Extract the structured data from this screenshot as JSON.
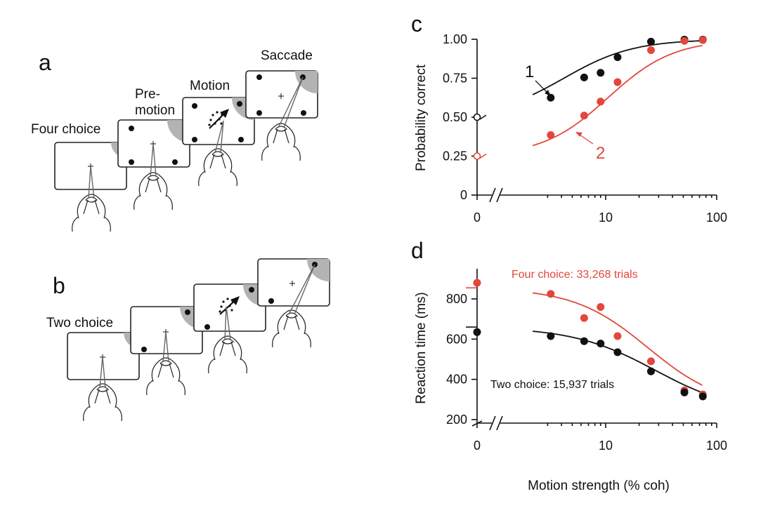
{
  "panels": {
    "a": {
      "letter": "a",
      "labels": [
        "Four choice",
        "Pre-",
        "motion",
        "Motion",
        "Saccade"
      ]
    },
    "b": {
      "letter": "b",
      "labels": [
        "Two choice"
      ]
    },
    "c": {
      "letter": "c"
    },
    "d": {
      "letter": "d"
    }
  },
  "chart_data": [
    {
      "type": "scatter",
      "panel": "c",
      "ylabel": "Probability correct",
      "x_scale": "log",
      "x_ticks": [
        "0",
        "10",
        "100"
      ],
      "y_ticks": [
        "0",
        "0.25",
        "0.50",
        "0.75",
        "1.00"
      ],
      "ylim": [
        0,
        1
      ],
      "series": [
        {
          "label": "1",
          "color": "#111111",
          "x": [
            0,
            3.2,
            6.4,
            9.0,
            12.8,
            25.6,
            51.2,
            75
          ],
          "y": [
            0.5,
            0.625,
            0.755,
            0.785,
            0.885,
            0.985,
            0.998,
            0.998
          ],
          "fit": "logistic"
        },
        {
          "label": "2",
          "color": "#e2473b",
          "x": [
            0,
            3.2,
            6.4,
            9.0,
            12.8,
            25.6,
            51.2,
            75
          ],
          "y": [
            0.25,
            0.385,
            0.51,
            0.6,
            0.725,
            0.93,
            0.99,
            0.995
          ],
          "fit": "logistic"
        }
      ]
    },
    {
      "type": "scatter",
      "panel": "d",
      "xlabel": "Motion strength (% coh)",
      "ylabel": "Reaction time (ms)",
      "x_scale": "log",
      "x_ticks": [
        "0",
        "10",
        "100"
      ],
      "y_ticks": [
        "200",
        "400",
        "600",
        "800"
      ],
      "ylim": [
        200,
        900
      ],
      "series": [
        {
          "label": "Four choice: 33,268 trials",
          "color": "#e2473b",
          "x": [
            0,
            3.2,
            6.4,
            9.0,
            12.8,
            25.6,
            51.2,
            75
          ],
          "y": [
            880,
            825,
            705,
            760,
            615,
            490,
            345,
            325
          ],
          "fit_level_at_zero": 855
        },
        {
          "label": "Two choice: 15,937 trials",
          "color": "#111111",
          "x": [
            0,
            3.2,
            6.4,
            9.0,
            12.8,
            25.6,
            51.2,
            75
          ],
          "y": [
            635,
            615,
            590,
            578,
            535,
            440,
            335,
            315
          ],
          "fit_level_at_zero": 660
        }
      ]
    }
  ]
}
